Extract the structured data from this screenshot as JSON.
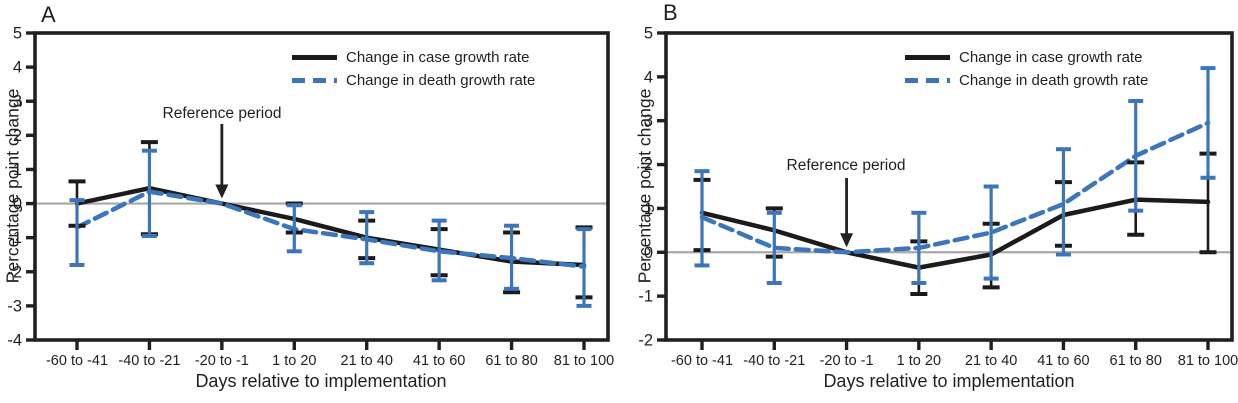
{
  "colors": {
    "case": "#1e1a19",
    "death": "#3b76ba",
    "zero_line": "#a8a8a8",
    "frame": "#231f20"
  },
  "chart_data": [
    {
      "panel_label": "A",
      "type": "line",
      "xlabel": "Days relative to implementation",
      "ylabel": "Percentage point change",
      "ylim": [
        -4,
        5
      ],
      "ytick_step": 1,
      "grid": "off",
      "legend_position": "top-right",
      "categories": [
        "-60 to -41",
        "-40 to -21",
        "-20 to -1",
        "1 to 20",
        "21 to 40",
        "41 to 60",
        "61 to 80",
        "81 to 100"
      ],
      "annotation": {
        "text": "Reference period",
        "target_category": "-20 to -1"
      },
      "legend": [
        {
          "label": "Change in case growth rate",
          "style": "solid"
        },
        {
          "label": "Change in death growth rate",
          "style": "dashed"
        }
      ],
      "series": [
        {
          "name": "Change in case growth rate",
          "color_key": "case",
          "line_style": "solid",
          "values": [
            0,
            0.45,
            0,
            -0.45,
            -1,
            -1.35,
            -1.7,
            -1.8
          ],
          "ci_low": [
            -0.65,
            -0.9,
            null,
            -0.85,
            -1.6,
            -2.1,
            -2.6,
            -2.75
          ],
          "ci_high": [
            0.65,
            1.8,
            null,
            0,
            -0.5,
            -0.75,
            -0.85,
            -0.7
          ]
        },
        {
          "name": "Change in death growth rate",
          "color_key": "death",
          "line_style": "dashed",
          "values": [
            -0.7,
            0.35,
            0,
            -0.75,
            -1.05,
            -1.4,
            -1.6,
            -1.85
          ],
          "ci_low": [
            -1.8,
            -0.95,
            null,
            -1.4,
            -1.75,
            -2.25,
            -2.5,
            -3
          ],
          "ci_high": [
            0.1,
            1.55,
            null,
            -0.05,
            -0.25,
            -0.5,
            -0.65,
            -0.75
          ]
        }
      ]
    },
    {
      "panel_label": "B",
      "type": "line",
      "xlabel": "Days relative to implementation",
      "ylabel": "Percentage point change",
      "ylim": [
        -2,
        5
      ],
      "ytick_step": 1,
      "grid": "off",
      "legend_position": "top-right",
      "categories": [
        "-60 to -41",
        "-40 to -21",
        "-20 to -1",
        "1 to 20",
        "21 to 40",
        "41 to 60",
        "61 to 80",
        "81 to 100"
      ],
      "annotation": {
        "text": "Reference period",
        "target_category": "-20 to -1"
      },
      "legend": [
        {
          "label": "Change in case growth rate",
          "style": "solid"
        },
        {
          "label": "Change in death growth rate",
          "style": "dashed"
        }
      ],
      "series": [
        {
          "name": "Change in case growth rate",
          "color_key": "case",
          "line_style": "solid",
          "values": [
            0.9,
            0.5,
            0,
            -0.35,
            -0.05,
            0.85,
            1.2,
            1.15
          ],
          "ci_low": [
            0.05,
            -0.1,
            null,
            -0.95,
            -0.8,
            0.15,
            0.4,
            0
          ],
          "ci_high": [
            1.65,
            1,
            null,
            0.25,
            0.65,
            1.6,
            2.05,
            2.25
          ]
        },
        {
          "name": "Change in death growth rate",
          "color_key": "death",
          "line_style": "dashed",
          "values": [
            0.8,
            0.1,
            0,
            0.1,
            0.45,
            1.1,
            2.2,
            2.95
          ],
          "ci_low": [
            -0.3,
            -0.7,
            null,
            -0.7,
            -0.6,
            -0.05,
            0.95,
            1.7
          ],
          "ci_high": [
            1.85,
            0.9,
            null,
            0.9,
            1.5,
            2.35,
            3.45,
            4.2
          ]
        }
      ]
    }
  ]
}
